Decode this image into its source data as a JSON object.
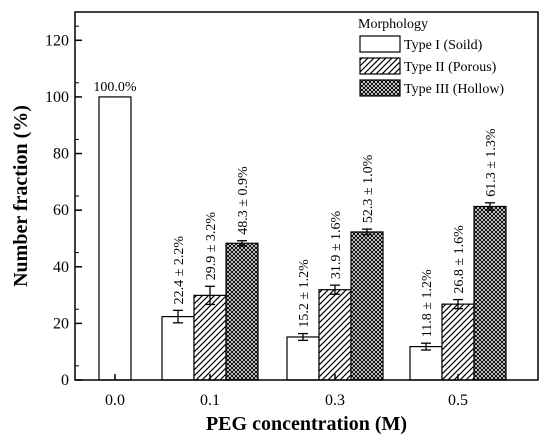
{
  "chart_data": {
    "type": "bar",
    "xlabel": "PEG concentration (M)",
    "ylabel": "Number fraction (%)",
    "ylim": [
      0,
      130
    ],
    "yticks": [
      0,
      20,
      40,
      60,
      80,
      100,
      120
    ],
    "categories": [
      "0.0",
      "0.1",
      "0.3",
      "0.5"
    ],
    "legend": {
      "title": "Morphology",
      "placement": "top-right"
    },
    "series": [
      {
        "name": "Type I (Soild)",
        "pattern": "solid",
        "values": [
          100.0,
          22.4,
          15.2,
          11.8
        ],
        "errors": [
          0,
          2.2,
          1.2,
          1.2
        ],
        "labels": [
          "100.0%",
          "22.4 ± 2.2%",
          "15.2 ± 1.2%",
          "11.8 ± 1.2%"
        ]
      },
      {
        "name": "Type II (Porous)",
        "pattern": "hatch",
        "values": [
          null,
          29.9,
          31.9,
          26.8
        ],
        "errors": [
          null,
          3.2,
          1.6,
          1.6
        ],
        "labels": [
          null,
          "29.9 ± 3.2%",
          "31.9 ± 1.6%",
          "26.8 ± 1.6%"
        ]
      },
      {
        "name": "Type III (Hollow)",
        "pattern": "crosshatch",
        "values": [
          null,
          48.3,
          52.3,
          61.3
        ],
        "errors": [
          null,
          0.9,
          1.0,
          1.3
        ],
        "labels": [
          null,
          "48.3 ± 0.9%",
          "52.3 ± 1.0%",
          "61.3 ± 1.3%"
        ]
      }
    ],
    "grid": false
  }
}
